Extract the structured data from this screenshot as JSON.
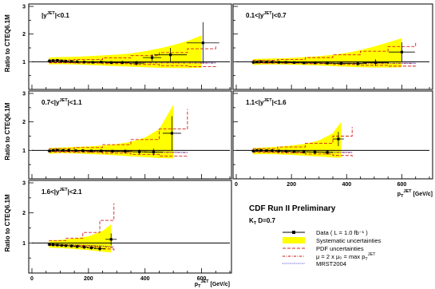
{
  "chart_data": {
    "type": "scatter",
    "title": "CDF Run II Preliminary",
    "subtitle": "K_T D=0.7",
    "ylabel": "Ratio to CTEQ6.1M",
    "xlabel": "p_T^JET [GeV/c]",
    "xlim": [
      0,
      700
    ],
    "ylim": [
      0,
      3
    ],
    "x_ticks": [
      "0",
      "200",
      "400",
      "600"
    ],
    "y_ticks": [
      "1",
      "2",
      "3"
    ],
    "grid": false,
    "reference_line": 1,
    "legend_position": "bottom-right",
    "legend": [
      {
        "label": "Data",
        "note": "( L = 1.0 fb⁻¹ )",
        "style": "data"
      },
      {
        "label": "Systematic uncertainties",
        "style": "band"
      },
      {
        "label": "PDF uncertainties",
        "style": "pdf"
      },
      {
        "label": "μ = 2 x μ₀ = max p_T^JET",
        "style": "mu"
      },
      {
        "label": "MRST2004",
        "style": "mrst"
      }
    ],
    "panels": [
      {
        "label": "|y^JET|<0.1",
        "data": [
          {
            "x": 62,
            "y": 1.03,
            "yerr": 0.06
          },
          {
            "x": 75,
            "y": 1.04,
            "yerr": 0.05
          },
          {
            "x": 90,
            "y": 1.05,
            "yerr": 0.04
          },
          {
            "x": 105,
            "y": 1.03,
            "yerr": 0.04
          },
          {
            "x": 120,
            "y": 1.02,
            "yerr": 0.04
          },
          {
            "x": 140,
            "y": 1.01,
            "yerr": 0.04
          },
          {
            "x": 160,
            "y": 1.0,
            "yerr": 0.04
          },
          {
            "x": 185,
            "y": 0.99,
            "yerr": 0.04
          },
          {
            "x": 215,
            "y": 0.98,
            "yerr": 0.04
          },
          {
            "x": 245,
            "y": 0.99,
            "yerr": 0.05
          },
          {
            "x": 280,
            "y": 0.97,
            "yerr": 0.05
          },
          {
            "x": 320,
            "y": 0.97,
            "yerr": 0.06
          },
          {
            "x": 370,
            "y": 0.95,
            "yerr": 0.08
          },
          {
            "x": 425,
            "y": 1.15,
            "yerr": 0.12
          },
          {
            "x": 490,
            "y": 1.25,
            "yerr": 0.25
          },
          {
            "x": 605,
            "y": 1.68,
            "yerr": 0.75
          }
        ],
        "band": [
          {
            "x": 60,
            "lo": 0.9,
            "hi": 1.15
          },
          {
            "x": 100,
            "lo": 0.91,
            "hi": 1.17
          },
          {
            "x": 150,
            "lo": 0.9,
            "hi": 1.18
          },
          {
            "x": 200,
            "lo": 0.88,
            "hi": 1.2
          },
          {
            "x": 250,
            "lo": 0.86,
            "hi": 1.23
          },
          {
            "x": 300,
            "lo": 0.84,
            "hi": 1.26
          },
          {
            "x": 350,
            "lo": 0.82,
            "hi": 1.3
          },
          {
            "x": 400,
            "lo": 0.8,
            "hi": 1.38
          },
          {
            "x": 450,
            "lo": 0.78,
            "hi": 1.48
          },
          {
            "x": 500,
            "lo": 0.77,
            "hi": 1.6
          },
          {
            "x": 550,
            "lo": 0.77,
            "hi": 1.75
          },
          {
            "x": 600,
            "lo": 0.78,
            "hi": 1.95
          }
        ],
        "pdf": [
          {
            "x": 60,
            "lo": 0.96,
            "hi": 1.06
          },
          {
            "x": 150,
            "lo": 0.95,
            "hi": 1.08
          },
          {
            "x": 250,
            "lo": 0.93,
            "hi": 1.14
          },
          {
            "x": 350,
            "lo": 0.9,
            "hi": 1.22
          },
          {
            "x": 450,
            "lo": 0.86,
            "hi": 1.33
          },
          {
            "x": 550,
            "lo": 0.82,
            "hi": 1.47
          },
          {
            "x": 650,
            "lo": 0.8,
            "hi": 1.6
          }
        ],
        "mu": [
          {
            "x": 60,
            "y": 0.98
          },
          {
            "x": 200,
            "y": 0.97
          },
          {
            "x": 400,
            "y": 0.96
          },
          {
            "x": 650,
            "y": 0.95
          }
        ],
        "mrst": [
          {
            "x": 60,
            "y": 0.99
          },
          {
            "x": 200,
            "y": 0.98
          },
          {
            "x": 400,
            "y": 0.97
          },
          {
            "x": 650,
            "y": 0.96
          }
        ]
      },
      {
        "label": "0.1<|y^JET|<0.7",
        "data": [
          {
            "x": 62,
            "y": 0.98,
            "yerr": 0.05
          },
          {
            "x": 75,
            "y": 0.99,
            "yerr": 0.04
          },
          {
            "x": 90,
            "y": 1.0,
            "yerr": 0.04
          },
          {
            "x": 110,
            "y": 0.99,
            "yerr": 0.04
          },
          {
            "x": 130,
            "y": 0.99,
            "yerr": 0.04
          },
          {
            "x": 155,
            "y": 0.98,
            "yerr": 0.04
          },
          {
            "x": 180,
            "y": 0.98,
            "yerr": 0.04
          },
          {
            "x": 210,
            "y": 0.97,
            "yerr": 0.04
          },
          {
            "x": 245,
            "y": 0.96,
            "yerr": 0.04
          },
          {
            "x": 285,
            "y": 0.96,
            "yerr": 0.05
          },
          {
            "x": 330,
            "y": 0.95,
            "yerr": 0.05
          },
          {
            "x": 380,
            "y": 0.94,
            "yerr": 0.06
          },
          {
            "x": 440,
            "y": 0.93,
            "yerr": 0.08
          },
          {
            "x": 505,
            "y": 0.97,
            "yerr": 0.12
          },
          {
            "x": 600,
            "y": 1.35,
            "yerr": 0.35
          }
        ],
        "band": [
          {
            "x": 60,
            "lo": 0.88,
            "hi": 1.1
          },
          {
            "x": 100,
            "lo": 0.9,
            "hi": 1.11
          },
          {
            "x": 150,
            "lo": 0.9,
            "hi": 1.12
          },
          {
            "x": 200,
            "lo": 0.89,
            "hi": 1.14
          },
          {
            "x": 250,
            "lo": 0.88,
            "hi": 1.17
          },
          {
            "x": 300,
            "lo": 0.86,
            "hi": 1.2
          },
          {
            "x": 350,
            "lo": 0.84,
            "hi": 1.25
          },
          {
            "x": 400,
            "lo": 0.82,
            "hi": 1.32
          },
          {
            "x": 450,
            "lo": 0.8,
            "hi": 1.42
          },
          {
            "x": 500,
            "lo": 0.79,
            "hi": 1.55
          },
          {
            "x": 550,
            "lo": 0.79,
            "hi": 1.7
          },
          {
            "x": 600,
            "lo": 0.8,
            "hi": 1.85
          }
        ],
        "pdf": [
          {
            "x": 60,
            "lo": 0.95,
            "hi": 1.05
          },
          {
            "x": 150,
            "lo": 0.95,
            "hi": 1.08
          },
          {
            "x": 250,
            "lo": 0.93,
            "hi": 1.15
          },
          {
            "x": 350,
            "lo": 0.9,
            "hi": 1.25
          },
          {
            "x": 450,
            "lo": 0.87,
            "hi": 1.38
          },
          {
            "x": 550,
            "lo": 0.84,
            "hi": 1.55
          },
          {
            "x": 650,
            "lo": 0.82,
            "hi": 1.68
          }
        ],
        "mu": [
          {
            "x": 60,
            "y": 0.97
          },
          {
            "x": 200,
            "y": 0.96
          },
          {
            "x": 400,
            "y": 0.95
          },
          {
            "x": 650,
            "y": 0.94
          }
        ],
        "mrst": [
          {
            "x": 60,
            "y": 0.98
          },
          {
            "x": 200,
            "y": 0.97
          },
          {
            "x": 400,
            "y": 0.96
          },
          {
            "x": 650,
            "y": 0.95
          }
        ]
      },
      {
        "label": "0.7<|y^JET|<1.1",
        "data": [
          {
            "x": 62,
            "y": 0.98,
            "yerr": 0.05
          },
          {
            "x": 75,
            "y": 1.0,
            "yerr": 0.04
          },
          {
            "x": 90,
            "y": 1.01,
            "yerr": 0.04
          },
          {
            "x": 110,
            "y": 1.0,
            "yerr": 0.04
          },
          {
            "x": 130,
            "y": 1.0,
            "yerr": 0.04
          },
          {
            "x": 155,
            "y": 0.99,
            "yerr": 0.04
          },
          {
            "x": 180,
            "y": 0.99,
            "yerr": 0.04
          },
          {
            "x": 210,
            "y": 0.98,
            "yerr": 0.04
          },
          {
            "x": 245,
            "y": 0.98,
            "yerr": 0.05
          },
          {
            "x": 285,
            "y": 0.97,
            "yerr": 0.05
          },
          {
            "x": 330,
            "y": 0.97,
            "yerr": 0.06
          },
          {
            "x": 380,
            "y": 0.95,
            "yerr": 0.08
          },
          {
            "x": 430,
            "y": 0.94,
            "yerr": 0.12
          },
          {
            "x": 495,
            "y": 1.6,
            "yerr": 0.6
          }
        ],
        "band": [
          {
            "x": 60,
            "lo": 0.88,
            "hi": 1.08
          },
          {
            "x": 100,
            "lo": 0.9,
            "hi": 1.1
          },
          {
            "x": 150,
            "lo": 0.89,
            "hi": 1.12
          },
          {
            "x": 200,
            "lo": 0.87,
            "hi": 1.14
          },
          {
            "x": 250,
            "lo": 0.85,
            "hi": 1.17
          },
          {
            "x": 300,
            "lo": 0.82,
            "hi": 1.22
          },
          {
            "x": 350,
            "lo": 0.79,
            "hi": 1.3
          },
          {
            "x": 400,
            "lo": 0.76,
            "hi": 1.45
          },
          {
            "x": 450,
            "lo": 0.73,
            "hi": 1.75
          },
          {
            "x": 500,
            "lo": 0.72,
            "hi": 2.6
          }
        ],
        "pdf": [
          {
            "x": 60,
            "lo": 0.94,
            "hi": 1.06
          },
          {
            "x": 150,
            "lo": 0.93,
            "hi": 1.1
          },
          {
            "x": 250,
            "lo": 0.9,
            "hi": 1.2
          },
          {
            "x": 350,
            "lo": 0.86,
            "hi": 1.38
          },
          {
            "x": 450,
            "lo": 0.8,
            "hi": 1.75
          },
          {
            "x": 550,
            "lo": 0.75,
            "hi": 2.45
          }
        ],
        "mu": [
          {
            "x": 60,
            "y": 0.97
          },
          {
            "x": 200,
            "y": 0.96
          },
          {
            "x": 400,
            "y": 0.94
          },
          {
            "x": 550,
            "y": 0.92
          }
        ],
        "mrst": [
          {
            "x": 60,
            "y": 0.98
          },
          {
            "x": 200,
            "y": 0.97
          },
          {
            "x": 400,
            "y": 0.95
          },
          {
            "x": 550,
            "y": 0.93
          }
        ]
      },
      {
        "label": "1.1<|y^JET|<1.6",
        "data": [
          {
            "x": 62,
            "y": 0.98,
            "yerr": 0.05
          },
          {
            "x": 75,
            "y": 1.0,
            "yerr": 0.04
          },
          {
            "x": 90,
            "y": 1.0,
            "yerr": 0.04
          },
          {
            "x": 110,
            "y": 0.99,
            "yerr": 0.04
          },
          {
            "x": 130,
            "y": 0.99,
            "yerr": 0.04
          },
          {
            "x": 155,
            "y": 0.98,
            "yerr": 0.04
          },
          {
            "x": 180,
            "y": 0.97,
            "yerr": 0.04
          },
          {
            "x": 210,
            "y": 0.96,
            "yerr": 0.05
          },
          {
            "x": 245,
            "y": 0.95,
            "yerr": 0.05
          },
          {
            "x": 285,
            "y": 0.94,
            "yerr": 0.06
          },
          {
            "x": 330,
            "y": 0.93,
            "yerr": 0.08
          },
          {
            "x": 370,
            "y": 1.4,
            "yerr": 0.25
          }
        ],
        "band": [
          {
            "x": 60,
            "lo": 0.86,
            "hi": 1.08
          },
          {
            "x": 100,
            "lo": 0.87,
            "hi": 1.1
          },
          {
            "x": 150,
            "lo": 0.86,
            "hi": 1.13
          },
          {
            "x": 200,
            "lo": 0.84,
            "hi": 1.17
          },
          {
            "x": 250,
            "lo": 0.81,
            "hi": 1.23
          },
          {
            "x": 300,
            "lo": 0.78,
            "hi": 1.35
          },
          {
            "x": 350,
            "lo": 0.75,
            "hi": 1.6
          },
          {
            "x": 380,
            "lo": 0.74,
            "hi": 2.0
          }
        ],
        "pdf": [
          {
            "x": 60,
            "lo": 0.93,
            "hi": 1.06
          },
          {
            "x": 150,
            "lo": 0.91,
            "hi": 1.12
          },
          {
            "x": 250,
            "lo": 0.87,
            "hi": 1.25
          },
          {
            "x": 350,
            "lo": 0.82,
            "hi": 1.5
          },
          {
            "x": 420,
            "lo": 0.78,
            "hi": 1.82
          }
        ],
        "mu": [
          {
            "x": 60,
            "y": 0.96
          },
          {
            "x": 200,
            "y": 0.95
          },
          {
            "x": 350,
            "y": 0.93
          },
          {
            "x": 420,
            "y": 0.92
          }
        ],
        "mrst": [
          {
            "x": 60,
            "y": 0.97
          },
          {
            "x": 200,
            "y": 0.96
          },
          {
            "x": 350,
            "y": 0.94
          },
          {
            "x": 420,
            "y": 0.93
          }
        ]
      },
      {
        "label": "1.6<|y^JET|<2.1",
        "data": [
          {
            "x": 62,
            "y": 0.95,
            "yerr": 0.05
          },
          {
            "x": 75,
            "y": 0.94,
            "yerr": 0.05
          },
          {
            "x": 90,
            "y": 0.93,
            "yerr": 0.04
          },
          {
            "x": 105,
            "y": 0.92,
            "yerr": 0.04
          },
          {
            "x": 120,
            "y": 0.91,
            "yerr": 0.04
          },
          {
            "x": 140,
            "y": 0.9,
            "yerr": 0.05
          },
          {
            "x": 160,
            "y": 0.88,
            "yerr": 0.05
          },
          {
            "x": 185,
            "y": 0.86,
            "yerr": 0.05
          },
          {
            "x": 210,
            "y": 0.84,
            "yerr": 0.06
          },
          {
            "x": 240,
            "y": 0.81,
            "yerr": 0.08
          },
          {
            "x": 280,
            "y": 1.12,
            "yerr": 0.2
          }
        ],
        "band": [
          {
            "x": 60,
            "lo": 0.84,
            "hi": 1.08
          },
          {
            "x": 100,
            "lo": 0.83,
            "hi": 1.1
          },
          {
            "x": 150,
            "lo": 0.8,
            "hi": 1.15
          },
          {
            "x": 200,
            "lo": 0.76,
            "hi": 1.22
          },
          {
            "x": 250,
            "lo": 0.71,
            "hi": 1.4
          },
          {
            "x": 280,
            "lo": 0.68,
            "hi": 1.62
          }
        ],
        "pdf": [
          {
            "x": 60,
            "lo": 0.92,
            "hi": 1.08
          },
          {
            "x": 120,
            "lo": 0.9,
            "hi": 1.16
          },
          {
            "x": 180,
            "lo": 0.86,
            "hi": 1.35
          },
          {
            "x": 240,
            "lo": 0.8,
            "hi": 1.75
          },
          {
            "x": 290,
            "lo": 0.74,
            "hi": 2.32
          }
        ],
        "mu": [
          {
            "x": 60,
            "y": 0.95
          },
          {
            "x": 150,
            "y": 0.93
          },
          {
            "x": 250,
            "y": 0.88
          },
          {
            "x": 290,
            "y": 0.85
          }
        ],
        "mrst": [
          {
            "x": 60,
            "y": 0.96
          },
          {
            "x": 150,
            "y": 0.94
          },
          {
            "x": 250,
            "y": 0.9
          },
          {
            "x": 290,
            "y": 0.87
          }
        ]
      }
    ]
  }
}
